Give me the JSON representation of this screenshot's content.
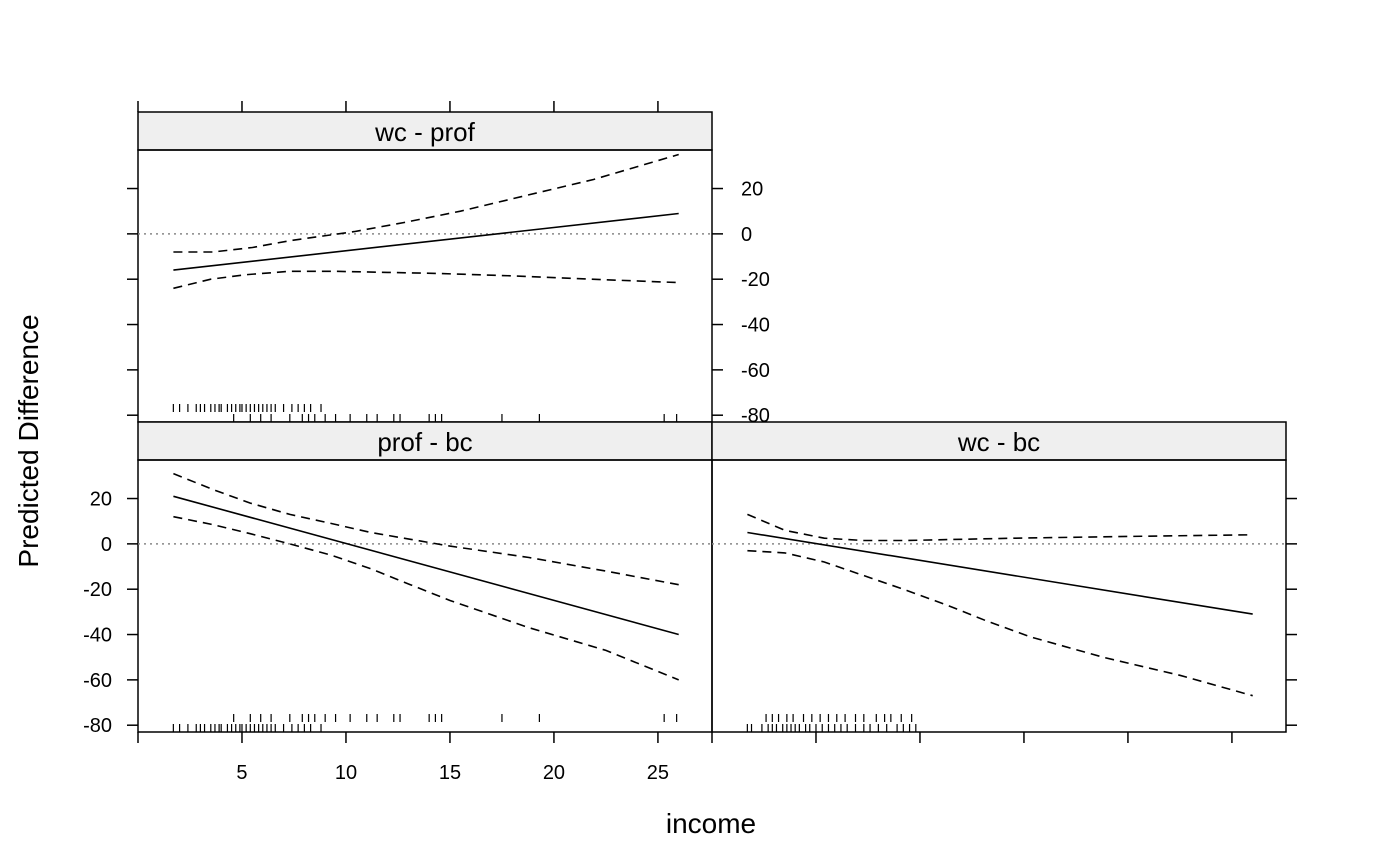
{
  "chart_data": {
    "type": "line",
    "xlabel": "income",
    "ylabel": "Predicted Difference",
    "xlim": [
      0,
      27.6
    ],
    "ylim": [
      -83,
      37
    ],
    "x_ticks": [
      5,
      10,
      15,
      20,
      25
    ],
    "y_ticks": [
      -80,
      -60,
      -40,
      -20,
      0,
      20
    ],
    "reference_line_y": 0,
    "panels": [
      {
        "name": "wc - prof",
        "estimate": {
          "x": [
            1.7,
            26
          ],
          "y": [
            -16,
            9
          ]
        },
        "upper": {
          "x": [
            1.7,
            3.6,
            5.5,
            7.3,
            10.4,
            12.8,
            15.5,
            18.7,
            21.9,
            26
          ],
          "y": [
            -8,
            -8,
            -6,
            -3,
            1,
            5,
            10,
            17,
            24,
            35
          ]
        },
        "lower": {
          "x": [
            1.7,
            3.5,
            5.2,
            7.3,
            9.5,
            12,
            14.5,
            17.9,
            21.8,
            26
          ],
          "y": [
            -24,
            -20,
            -18,
            -16.5,
            -16.5,
            -17,
            -17.5,
            -18.5,
            -20,
            -21.5
          ]
        }
      },
      {
        "name": "prof - bc",
        "estimate": {
          "x": [
            1.7,
            26
          ],
          "y": [
            21,
            -40
          ]
        },
        "upper": {
          "x": [
            1.7,
            3.6,
            5.4,
            7.3,
            9.3,
            11.2,
            13.1,
            15,
            18.8,
            22.5,
            26
          ],
          "y": [
            31,
            24,
            18,
            13,
            9,
            5,
            2,
            -1,
            -6,
            -12,
            -18
          ]
        },
        "lower": {
          "x": [
            1.7,
            3.6,
            5.4,
            7.3,
            9.3,
            11.2,
            13.1,
            15,
            18.8,
            22.5,
            26
          ],
          "y": [
            12,
            8.5,
            4.5,
            0,
            -5,
            -11,
            -18,
            -25,
            -37,
            -47,
            -60
          ]
        }
      },
      {
        "name": "wc - bc",
        "estimate": {
          "x": [
            1.7,
            26
          ],
          "y": [
            5,
            -31
          ]
        },
        "upper": {
          "x": [
            1.7,
            3.5,
            5.4,
            7.3,
            9.3,
            12,
            14.5,
            17.9,
            21.8,
            26
          ],
          "y": [
            13,
            6,
            2.5,
            1.5,
            1.5,
            2,
            2.5,
            3,
            3.5,
            4
          ]
        },
        "lower": {
          "x": [
            1.7,
            3.5,
            5.4,
            7.3,
            9.2,
            11.3,
            13.2,
            15.3,
            18.8,
            22.5,
            26
          ],
          "y": [
            -3,
            -4,
            -8,
            -14,
            -20,
            -27,
            -34,
            -41,
            -50,
            -58,
            -67
          ]
        }
      }
    ],
    "rug_upper": [
      4.6,
      5.4,
      5.9,
      6.4,
      7.3,
      7.9,
      8.2,
      8.5,
      9.0,
      9.5,
      10.2,
      11.0,
      11.5,
      12.3,
      12.6,
      14.0,
      14.3,
      14.6,
      17.5,
      19.3,
      25.3,
      25.9
    ],
    "rug_lower": [
      1.7,
      2.0,
      2.4,
      2.8,
      3.0,
      3.2,
      3.5,
      3.7,
      3.9,
      4.0,
      4.3,
      4.5,
      4.7,
      4.9,
      5.0,
      5.2,
      5.4,
      5.6,
      5.8,
      6.0,
      6.2,
      6.4,
      6.6,
      7.0,
      7.4,
      7.7,
      8.0,
      8.3,
      8.8
    ],
    "rug_lower_wcbc": [
      1.7,
      1.9,
      2.4,
      2.7,
      2.9,
      3.1,
      3.4,
      3.6,
      3.8,
      4.0,
      4.2,
      4.5,
      4.7,
      5.0,
      5.3,
      5.6,
      5.9,
      6.2,
      6.5,
      6.9,
      7.3,
      7.6,
      8.0,
      8.4,
      8.9,
      9.2,
      9.5,
      9.8
    ],
    "rug_upper_wcbc": [
      2.6,
      2.9,
      3.2,
      3.6,
      3.9,
      4.4,
      4.8,
      5.2,
      5.6,
      6.0,
      6.4,
      6.9,
      7.3,
      7.9,
      8.3,
      8.6,
      9.1,
      9.6
    ]
  }
}
